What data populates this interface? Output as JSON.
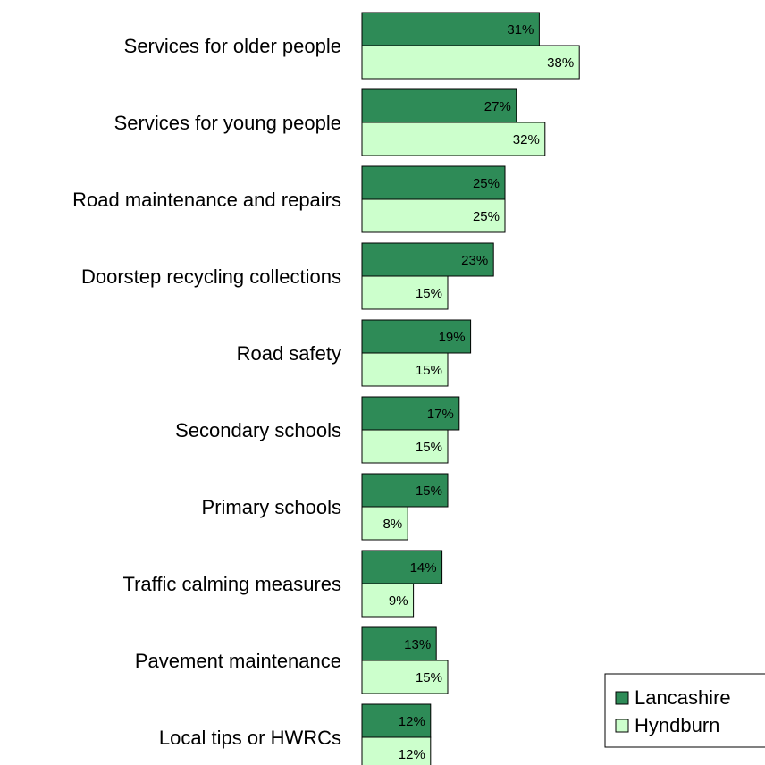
{
  "chart_data": {
    "type": "bar",
    "orientation": "horizontal",
    "categories": [
      "Services for older people",
      "Services for young people",
      "Road maintenance and repairs",
      "Doorstep recycling collections",
      "Road safety",
      "Secondary schools",
      "Primary schools",
      "Traffic calming measures",
      "Pavement maintenance",
      "Local tips or HWRCs"
    ],
    "series": [
      {
        "name": "Lancashire",
        "values": [
          31,
          27,
          25,
          23,
          19,
          17,
          15,
          14,
          13,
          12
        ],
        "labels": [
          "31%",
          "27%",
          "25%",
          "23%",
          "19%",
          "17%",
          "15%",
          "14%",
          "13%",
          "12%"
        ],
        "color": "#2e8b57"
      },
      {
        "name": "Hyndburn",
        "values": [
          38,
          32,
          25,
          15,
          15,
          15,
          8,
          9,
          15,
          12
        ],
        "labels": [
          "38%",
          "32%",
          "25%",
          "15%",
          "15%",
          "15%",
          "8%",
          "9%",
          "15%",
          "12%"
        ],
        "color": "#ccffcc"
      }
    ],
    "value_unit": "%",
    "legend_position": "bottom-right",
    "axes_visible": false,
    "grid": false
  }
}
